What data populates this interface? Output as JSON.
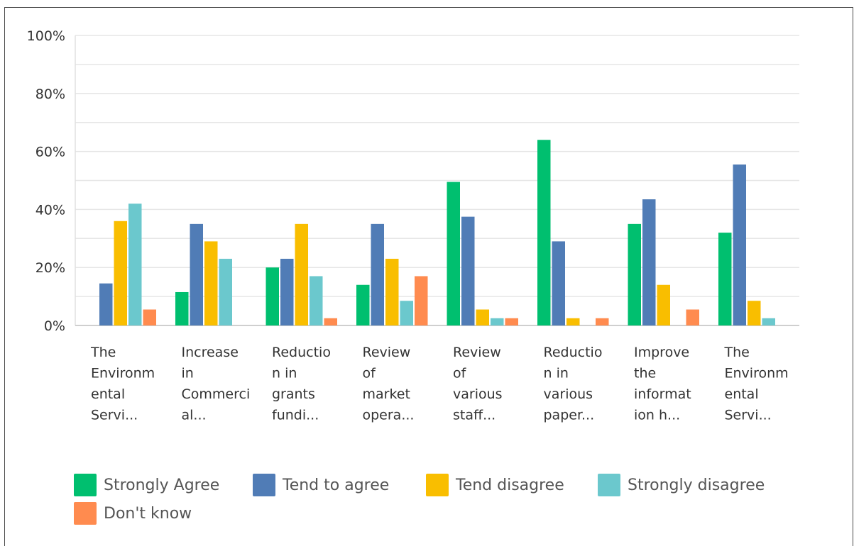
{
  "chart_data": {
    "type": "bar",
    "categories": [
      "The Environmental Servi...",
      "Increase in Commercial...",
      "Reduction in grants fundi...",
      "Review of market opera...",
      "Review of various staff...",
      "Reduction in various paper...",
      "Improve the information h...",
      "The Environmental Servi..."
    ],
    "category_lines": [
      [
        "The",
        "Environm",
        "ental",
        "Servi..."
      ],
      [
        "Increase",
        "in",
        "Commerci",
        "al..."
      ],
      [
        "Reductio",
        "n in",
        "grants",
        "fundi..."
      ],
      [
        "Review",
        "of",
        "market",
        "opera..."
      ],
      [
        "Review",
        "of",
        "various",
        "staff..."
      ],
      [
        "Reductio",
        "n in",
        "various",
        "paper..."
      ],
      [
        "Improve",
        "the",
        "informat",
        "ion h..."
      ],
      [
        "The",
        "Environm",
        "ental",
        "Servi..."
      ]
    ],
    "series": [
      {
        "name": "Strongly Agree",
        "color": "#00bf6f",
        "values": [
          0,
          11.5,
          20,
          14,
          49.5,
          64,
          35,
          32
        ]
      },
      {
        "name": "Tend to agree",
        "color": "#507cb6",
        "values": [
          14.5,
          35,
          23,
          35,
          37.5,
          29,
          43.5,
          55.5
        ]
      },
      {
        "name": "Tend disagree",
        "color": "#f9be00",
        "values": [
          36,
          29,
          35,
          23,
          5.5,
          2.5,
          14,
          8.5
        ]
      },
      {
        "name": "Strongly disagree",
        "color": "#6bc8cd",
        "values": [
          42,
          23,
          17,
          8.5,
          2.5,
          0,
          0,
          2.5
        ]
      },
      {
        "name": "Don't know",
        "color": "#ff8b4f",
        "values": [
          5.5,
          0,
          2.5,
          17,
          2.5,
          2.5,
          5.5,
          0
        ]
      }
    ],
    "ylim": [
      0,
      100
    ],
    "yticks": [
      "0%",
      "20%",
      "40%",
      "60%",
      "80%",
      "100%"
    ],
    "ytick_values": [
      0,
      20,
      40,
      60,
      80,
      100
    ],
    "grid": true,
    "legend_position": "bottom"
  }
}
